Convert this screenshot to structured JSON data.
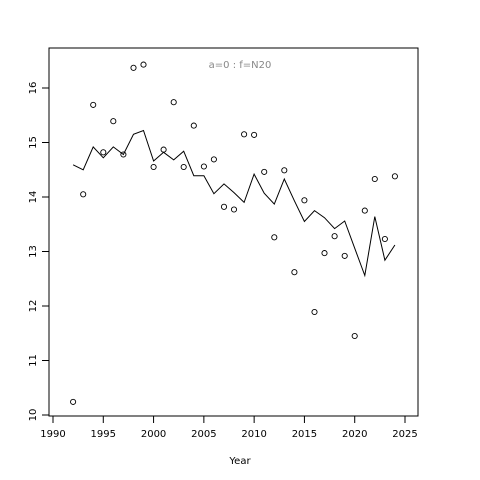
{
  "chart_data": {
    "type": "line",
    "title": "",
    "annotation": "a=0  :  f=N20",
    "xlabel": "Year",
    "ylabel": "",
    "xlim": [
      1990,
      2025
    ],
    "ylim": [
      10,
      16.5
    ],
    "xticks": [
      1990,
      1995,
      2000,
      2005,
      2010,
      2015,
      2020,
      2025
    ],
    "yticks": [
      10,
      11,
      12,
      13,
      14,
      15,
      16
    ],
    "grid": false,
    "legend": "none",
    "series": [
      {
        "style": "points",
        "x": [
          1992,
          1993,
          1994,
          1995,
          1996,
          1997,
          1998,
          1999,
          2000,
          2001,
          2002,
          2003,
          2004,
          2005,
          2006,
          2007,
          2008,
          2009,
          2010,
          2011,
          2012,
          2013,
          2014,
          2015,
          2016,
          2017,
          2018,
          2019,
          2020,
          2021,
          2022,
          2023,
          2024
        ],
        "y": [
          10.24,
          14.05,
          15.69,
          14.82,
          15.39,
          14.78,
          16.37,
          16.43,
          14.55,
          14.87,
          15.74,
          14.55,
          15.31,
          14.56,
          14.69,
          13.82,
          13.77,
          15.15,
          15.14,
          14.46,
          13.26,
          14.49,
          12.62,
          13.94,
          11.89,
          12.97,
          13.28,
          12.92,
          11.45,
          13.75,
          14.33,
          13.23,
          14.38
        ]
      },
      {
        "style": "line",
        "x": [
          1992,
          1993,
          1994,
          1995,
          1996,
          1997,
          1998,
          1999,
          2000,
          2001,
          2002,
          2003,
          2004,
          2005,
          2006,
          2007,
          2008,
          2009,
          2010,
          2011,
          2012,
          2013,
          2014,
          2015,
          2016,
          2017,
          2018,
          2019,
          2020,
          2021,
          2022,
          2023,
          2024
        ],
        "y": [
          14.59,
          14.5,
          14.92,
          14.72,
          14.92,
          14.78,
          15.15,
          15.22,
          14.66,
          14.82,
          14.68,
          14.84,
          14.39,
          14.39,
          14.06,
          14.24,
          14.08,
          13.9,
          14.42,
          14.07,
          13.87,
          14.33,
          13.93,
          13.55,
          13.75,
          13.62,
          13.42,
          13.56,
          13.06,
          12.56,
          13.64,
          12.84,
          13.12
        ]
      }
    ]
  }
}
